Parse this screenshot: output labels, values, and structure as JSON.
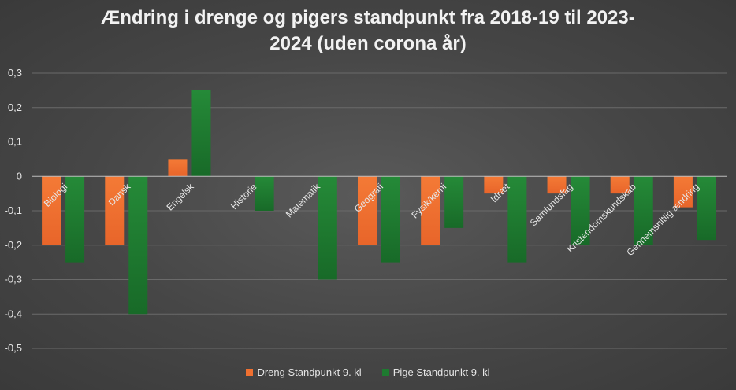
{
  "chart_data": {
    "type": "bar",
    "title_lines": [
      "Ændring i drenge og pigers standpunkt fra 2018-19 til 2023-",
      "2024 (uden corona år)"
    ],
    "categories": [
      "Biologi",
      "Dansk",
      "Engelsk",
      "Historie",
      "Matematik",
      "Geografi",
      "Fysik/kemi",
      "Idræt",
      "Samfundsfag",
      "Kristendomskundskab",
      "Gennemsnitlig ændring"
    ],
    "series": [
      {
        "name": "Dreng Standpunkt 9. kl",
        "color": "#f07030",
        "values": [
          -0.2,
          -0.2,
          0.05,
          null,
          null,
          -0.2,
          -0.2,
          -0.05,
          -0.05,
          -0.05,
          -0.09
        ]
      },
      {
        "name": "Pige Standpunkt 9. kl",
        "color": "#1e7a30",
        "values": [
          -0.25,
          -0.4,
          0.25,
          -0.1,
          -0.3,
          -0.25,
          -0.15,
          -0.25,
          -0.2,
          -0.2,
          -0.185
        ]
      }
    ],
    "ylim": [
      -0.5,
      0.3
    ],
    "yticks": [
      0.3,
      0.2,
      0.1,
      0,
      -0.1,
      -0.2,
      -0.3,
      -0.4,
      -0.5
    ],
    "ytick_labels": [
      "0,3",
      "0,2",
      "0,1",
      "0",
      "-0,1",
      "-0,2",
      "-0,3",
      "-0,4",
      "-0,5"
    ],
    "grid": true,
    "legend_position": "bottom"
  }
}
